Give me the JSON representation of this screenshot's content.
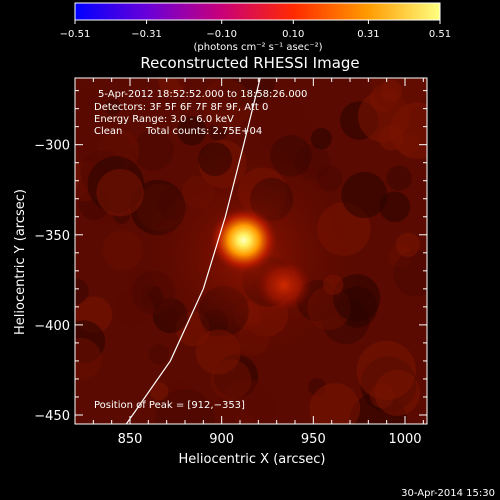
{
  "chart_data": {
    "type": "heatmap",
    "title": "Reconstructed RHESSI Image",
    "xlabel": "Heliocentric X (arcsec)",
    "ylabel": "Heliocentric Y (arcsec)",
    "xlim": [
      820,
      1012
    ],
    "ylim": [
      -455,
      -263
    ],
    "x_ticks": [
      850,
      900,
      950,
      1000
    ],
    "y_ticks": [
      -300,
      -350,
      -400,
      -450
    ],
    "x_tick_labels": [
      "850",
      "900",
      "950",
      "1000"
    ],
    "y_tick_labels": [
      "−300",
      "−350",
      "−400",
      "−450"
    ],
    "colorbar": {
      "range": [
        -0.51,
        0.51
      ],
      "ticks": [
        -0.51,
        -0.31,
        -0.1,
        0.1,
        0.31,
        0.51
      ],
      "tick_labels": [
        "−0.51",
        "−0.31",
        "−0.10",
        "0.10",
        "0.31",
        "0.51"
      ],
      "unit_label": "(photons cm⁻² s⁻¹ asec⁻²)",
      "colormap": [
        "#0000ff",
        "#6a00d8",
        "#c8007a",
        "#ff2a00",
        "#ff9a00",
        "#ffff80"
      ]
    },
    "sources": [
      {
        "x": 912,
        "y": -353,
        "peak": 0.51
      },
      {
        "x": 934,
        "y": -378,
        "peak": 0.18
      }
    ],
    "limb_curve": [
      [
        848,
        -455
      ],
      [
        872,
        -420
      ],
      [
        890,
        -380
      ],
      [
        902,
        -340
      ],
      [
        912,
        -300
      ],
      [
        921,
        -263
      ]
    ],
    "annotations": {
      "time_range": "5-Apr-2012 18:52:52.000 to 18:58:26.000",
      "detectors": "Detectors: 3F 5F 6F 7F 8F 9F, Att 0",
      "energy_range": "Energy Range: 3.0 - 6.0 keV",
      "clean_label": "Clean",
      "total_counts": "Total counts: 2.75E+04",
      "peak_position": "Position of Peak = [912,−353]"
    },
    "footer_date": "30-Apr-2014 15:30"
  }
}
